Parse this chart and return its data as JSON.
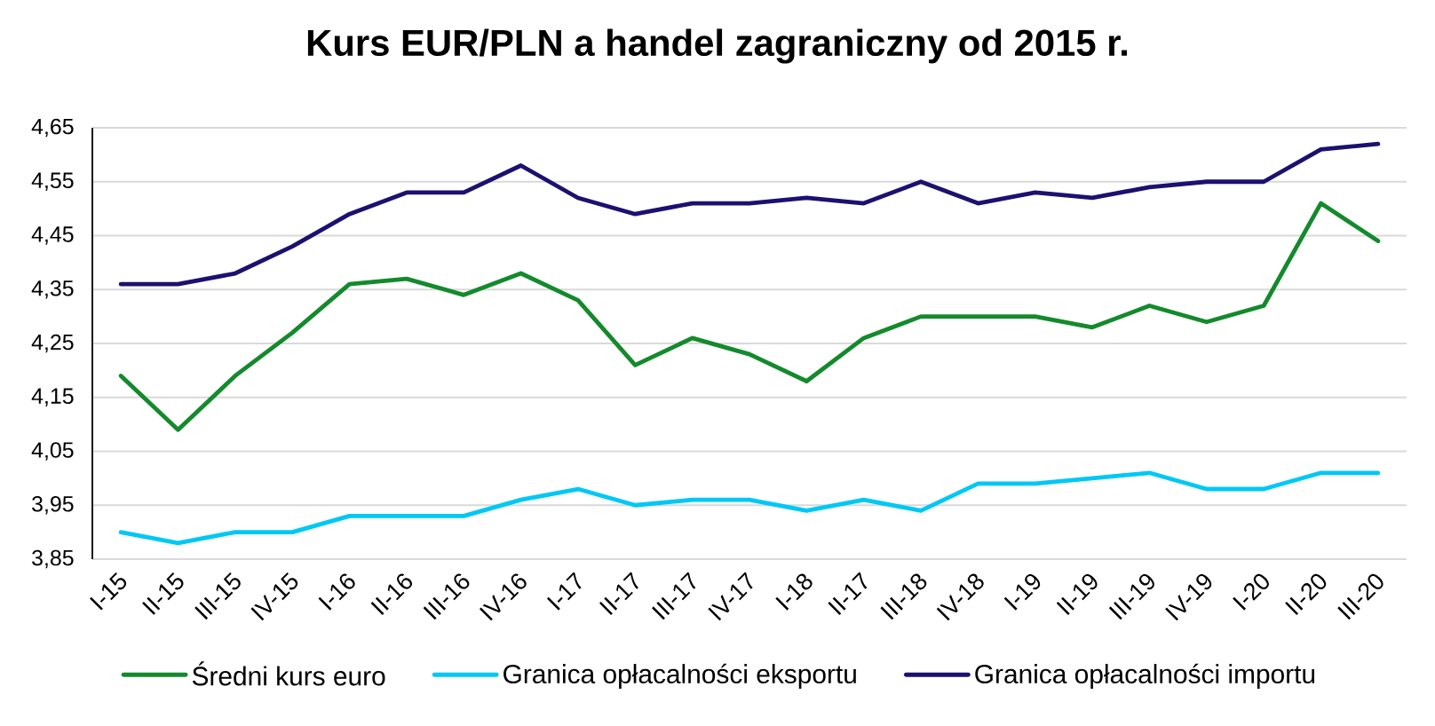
{
  "chart_data": {
    "type": "line",
    "title": "Kurs EUR/PLN a handel zagraniczny od 2015 r.",
    "categories": [
      "I-15",
      "II-15",
      "III-15",
      "IV-15",
      "I-16",
      "II-16",
      "III-16",
      "IV-16",
      "I-17",
      "II-17",
      "III-17",
      "IV-17",
      "I-18",
      "II-17",
      "III-18",
      "IV-18",
      "I-19",
      "II-19",
      "III-19",
      "IV-19",
      "I-20",
      "II-20",
      "III-20"
    ],
    "series": [
      {
        "name": "Średni kurs euro",
        "color": "#138a2c",
        "values": [
          4.19,
          4.09,
          4.19,
          4.27,
          4.36,
          4.37,
          4.34,
          4.38,
          4.33,
          4.21,
          4.26,
          4.23,
          4.18,
          4.26,
          4.3,
          4.3,
          4.3,
          4.28,
          4.32,
          4.29,
          4.32,
          4.51,
          4.44
        ]
      },
      {
        "name": "Granica opłacalności eksportu",
        "color": "#00c8f5",
        "values": [
          3.9,
          3.88,
          3.9,
          3.9,
          3.93,
          3.93,
          3.93,
          3.96,
          3.98,
          3.95,
          3.96,
          3.96,
          3.94,
          3.96,
          3.94,
          3.99,
          3.99,
          4.0,
          4.01,
          3.98,
          3.98,
          4.01,
          4.01
        ]
      },
      {
        "name": "Granica opłacalności importu",
        "color": "#1c1070",
        "values": [
          4.36,
          4.36,
          4.38,
          4.43,
          4.49,
          4.53,
          4.53,
          4.58,
          4.52,
          4.49,
          4.51,
          4.51,
          4.52,
          4.51,
          4.55,
          4.51,
          4.53,
          4.52,
          4.54,
          4.55,
          4.55,
          4.61,
          4.62
        ]
      }
    ],
    "ylim": [
      3.85,
      4.65
    ],
    "yticks": [
      {
        "value": 3.85,
        "label": "3,85"
      },
      {
        "value": 3.95,
        "label": "3,95"
      },
      {
        "value": 4.05,
        "label": "4,05"
      },
      {
        "value": 4.15,
        "label": "4,15"
      },
      {
        "value": 4.25,
        "label": "4,25"
      },
      {
        "value": 4.35,
        "label": "4,35"
      },
      {
        "value": 4.45,
        "label": "4,45"
      },
      {
        "value": 4.55,
        "label": "4,55"
      },
      {
        "value": 4.65,
        "label": "4,65"
      }
    ],
    "grid": "y",
    "legend": "bottom",
    "marker": "none",
    "line_style": "solid"
  }
}
